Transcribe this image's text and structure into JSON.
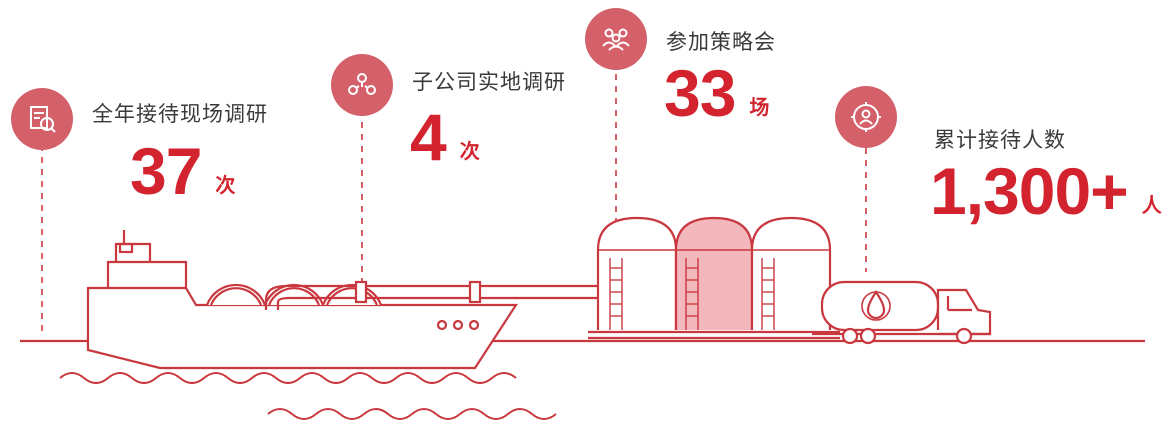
{
  "colors": {
    "accent": "#d3232e",
    "line": "#c9383f",
    "icon_bg": "#d4606a",
    "tank_fill": "#f3b8bc"
  },
  "stats": [
    {
      "label": "全年接待现场调研",
      "value": "37",
      "unit": "次",
      "icon": "document-search-icon"
    },
    {
      "label": "子公司实地调研",
      "value": "4",
      "unit": "次",
      "icon": "people-network-icon"
    },
    {
      "label": "参加策略会",
      "value": "33",
      "unit": "场",
      "icon": "team-meeting-icon"
    },
    {
      "label": "累计接待人数",
      "value": "1,300+",
      "unit": "人",
      "icon": "person-target-icon"
    }
  ]
}
